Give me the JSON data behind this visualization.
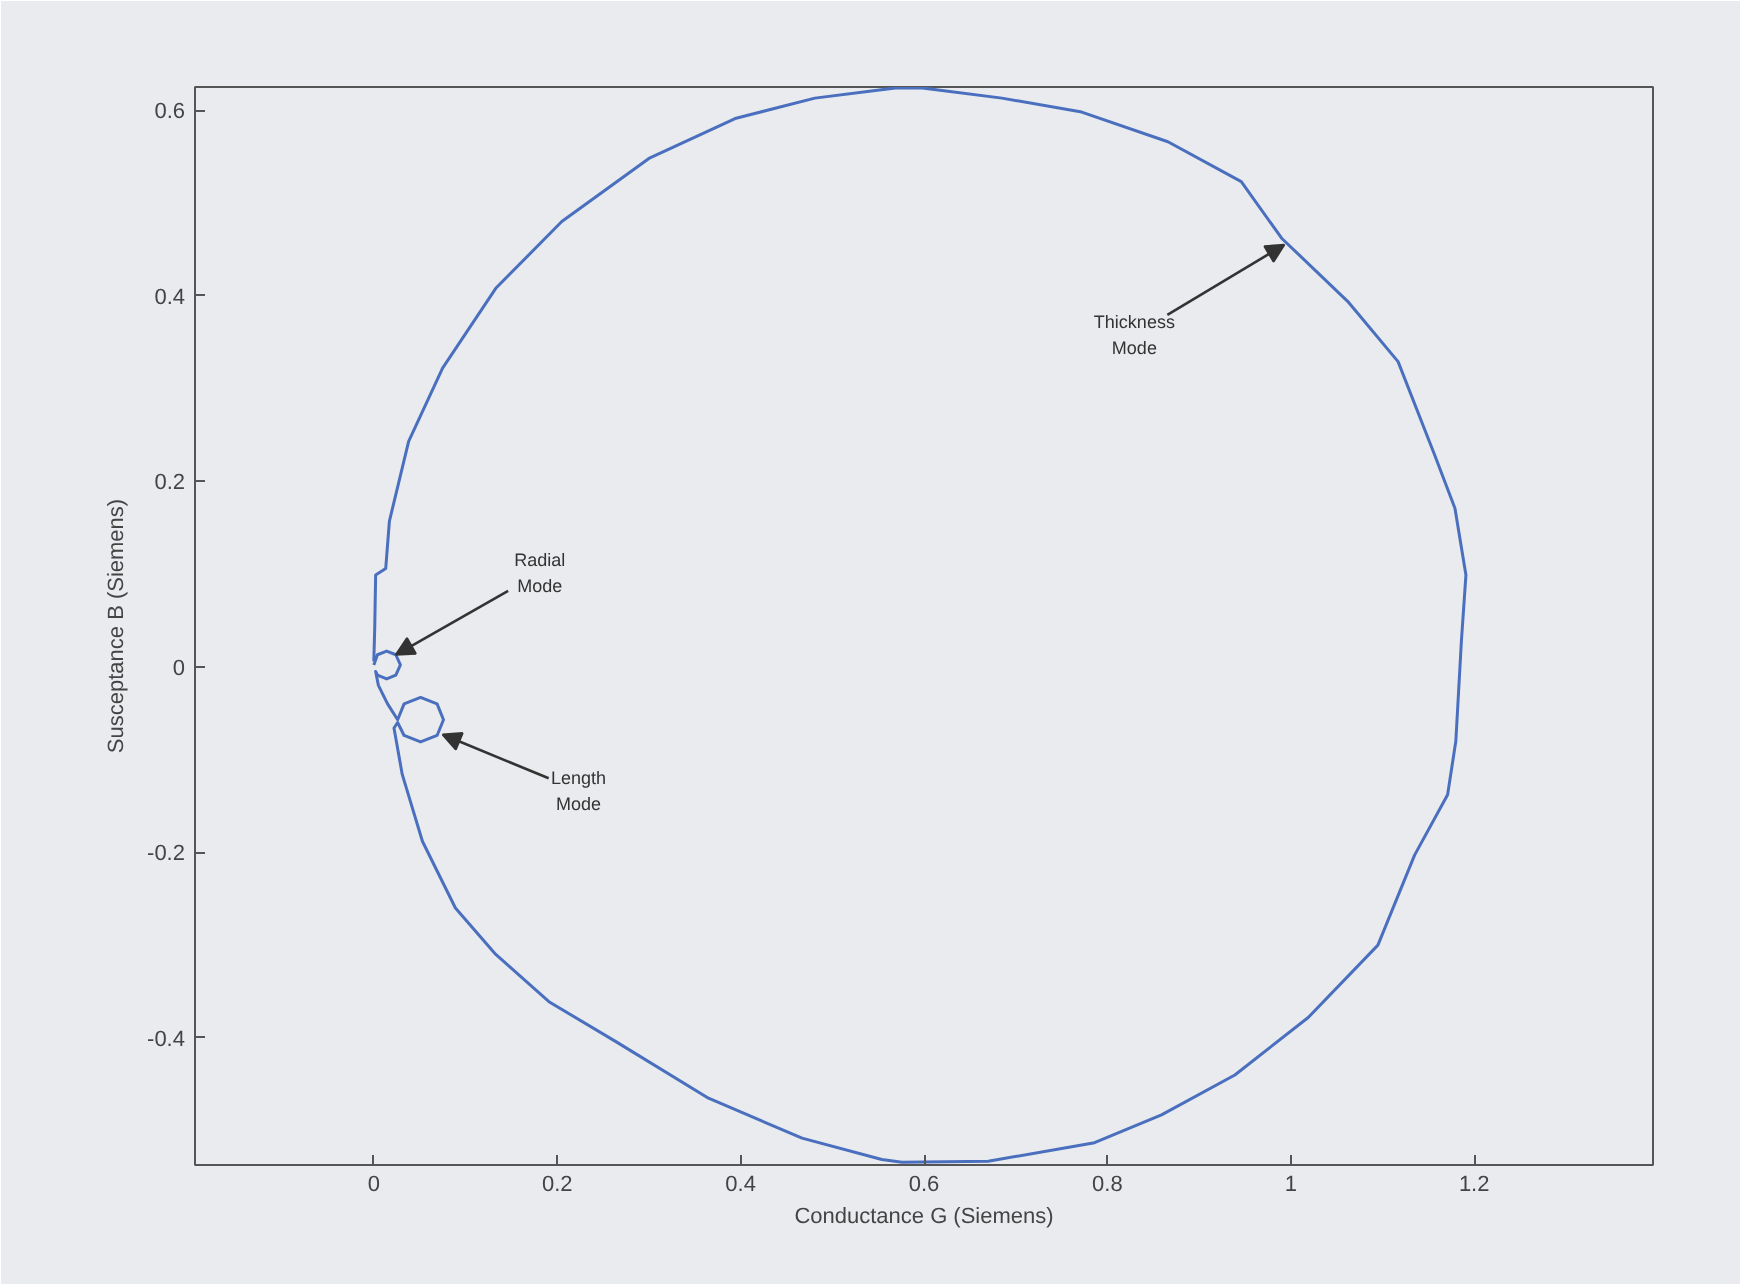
{
  "chart_data": {
    "type": "line",
    "xlabel": "Conductance G (Siemens)",
    "ylabel": "Susceptance B (Siemens)",
    "xlim": [
      -0.195,
      1.395
    ],
    "ylim": [
      -0.537,
      0.625
    ],
    "xticks": [
      0,
      0.2,
      0.4,
      0.6,
      0.8,
      1,
      1.2
    ],
    "yticks": [
      -0.4,
      -0.2,
      0,
      0.2,
      0.4,
      0.6
    ],
    "marker": "none",
    "line_style": "solid",
    "series": [
      {
        "color": "#4a6fbf",
        "x": [
          0.0,
          0.004,
          0.014,
          0.024,
          0.029,
          0.024,
          0.014,
          0.004,
          0.002,
          0.005,
          0.015,
          0.026,
          0.033,
          0.051,
          0.069,
          0.076,
          0.069,
          0.051,
          0.033,
          0.026,
          0.022,
          0.031,
          0.053,
          0.089,
          0.133,
          0.191,
          0.264,
          0.365,
          0.467,
          0.554,
          0.576,
          0.67,
          0.786,
          0.859,
          0.939,
          1.019,
          1.095,
          1.135,
          1.171,
          1.18,
          1.186,
          1.191,
          1.179,
          1.157,
          1.117,
          1.062,
          0.99,
          0.946,
          0.866,
          0.772,
          0.685,
          0.598,
          0.569,
          0.481,
          0.394,
          0.3,
          0.205,
          0.133,
          0.075,
          0.038,
          0.017,
          0.013,
          0.002,
          0.001,
          0.0
        ],
        "values": [
          0.002,
          0.013,
          0.017,
          0.013,
          0.002,
          -0.009,
          -0.013,
          -0.009,
          -0.005,
          -0.02,
          -0.04,
          -0.057,
          -0.04,
          -0.033,
          -0.04,
          -0.057,
          -0.074,
          -0.081,
          -0.074,
          -0.06,
          -0.066,
          -0.116,
          -0.188,
          -0.26,
          -0.31,
          -0.361,
          -0.404,
          -0.465,
          -0.508,
          -0.531,
          -0.534,
          -0.533,
          -0.513,
          -0.483,
          -0.44,
          -0.378,
          -0.3,
          -0.203,
          -0.138,
          -0.08,
          0.027,
          0.099,
          0.171,
          0.228,
          0.329,
          0.394,
          0.462,
          0.523,
          0.566,
          0.598,
          0.613,
          0.624,
          0.624,
          0.613,
          0.591,
          0.548,
          0.48,
          0.408,
          0.322,
          0.243,
          0.157,
          0.106,
          0.099,
          0.042,
          0.006
        ]
      }
    ],
    "annotations": [
      {
        "text": "Radial\nMode",
        "x": 0.024,
        "y": 0.013
      },
      {
        "text": "Length\nMode",
        "x": 0.075,
        "y": -0.073
      },
      {
        "text": "Thickness\nMode",
        "x": 0.993,
        "y": 0.455
      }
    ]
  }
}
